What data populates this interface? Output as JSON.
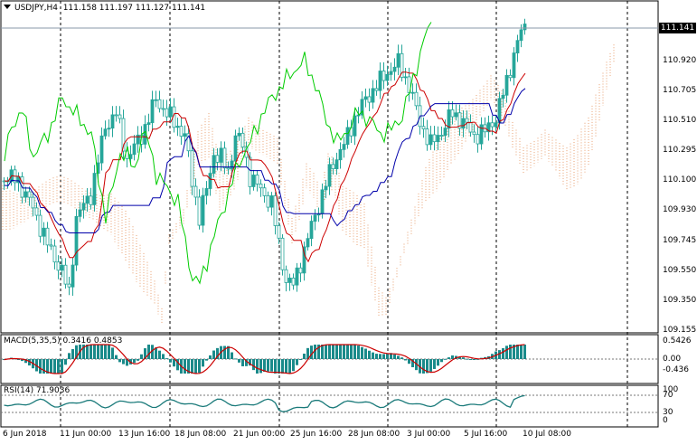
{
  "header": {
    "symbol_timeframe": "USDJPY,H4",
    "ohlc": "111.158 111.197 111.127 111.141",
    "dropdown_icon": "triangle-down-icon"
  },
  "price_tag": "111.141",
  "price_axis": [
    "110.920",
    "110.705",
    "110.510",
    "110.295",
    "110.100",
    "109.930",
    "109.745",
    "109.550",
    "109.350",
    "109.155"
  ],
  "macd": {
    "label": "MACD(5,35,5) 0.3416 0.4853",
    "axis": [
      "0.5426",
      "0.00",
      "-0.436"
    ]
  },
  "rsi": {
    "label": "RSI(14) 71.9036",
    "axis": [
      "100",
      "70",
      "30",
      "0"
    ]
  },
  "time_axis": [
    "6 Jun 2018",
    "11 Jun 00:00",
    "13 Jun 16:00",
    "18 Jun 08:00",
    "21 Jun 00:00",
    "25 Jun 16:00",
    "28 Jun 08:00",
    "3 Jul 00:00",
    "5 Jul 16:00",
    "10 Jul 08:00"
  ],
  "colors": {
    "bull": "#26a69a",
    "bear": "#26a69a",
    "tenkan": "#cc0000",
    "kijun": "#0000aa",
    "chikou": "#00cc00",
    "cloud_a": "#e8a070",
    "cloud_b": "#c8a0c8",
    "macd_hist": "#1a8a8a",
    "macd_signal": "#cc0000",
    "rsi_line": "#1a7a7a"
  }
}
